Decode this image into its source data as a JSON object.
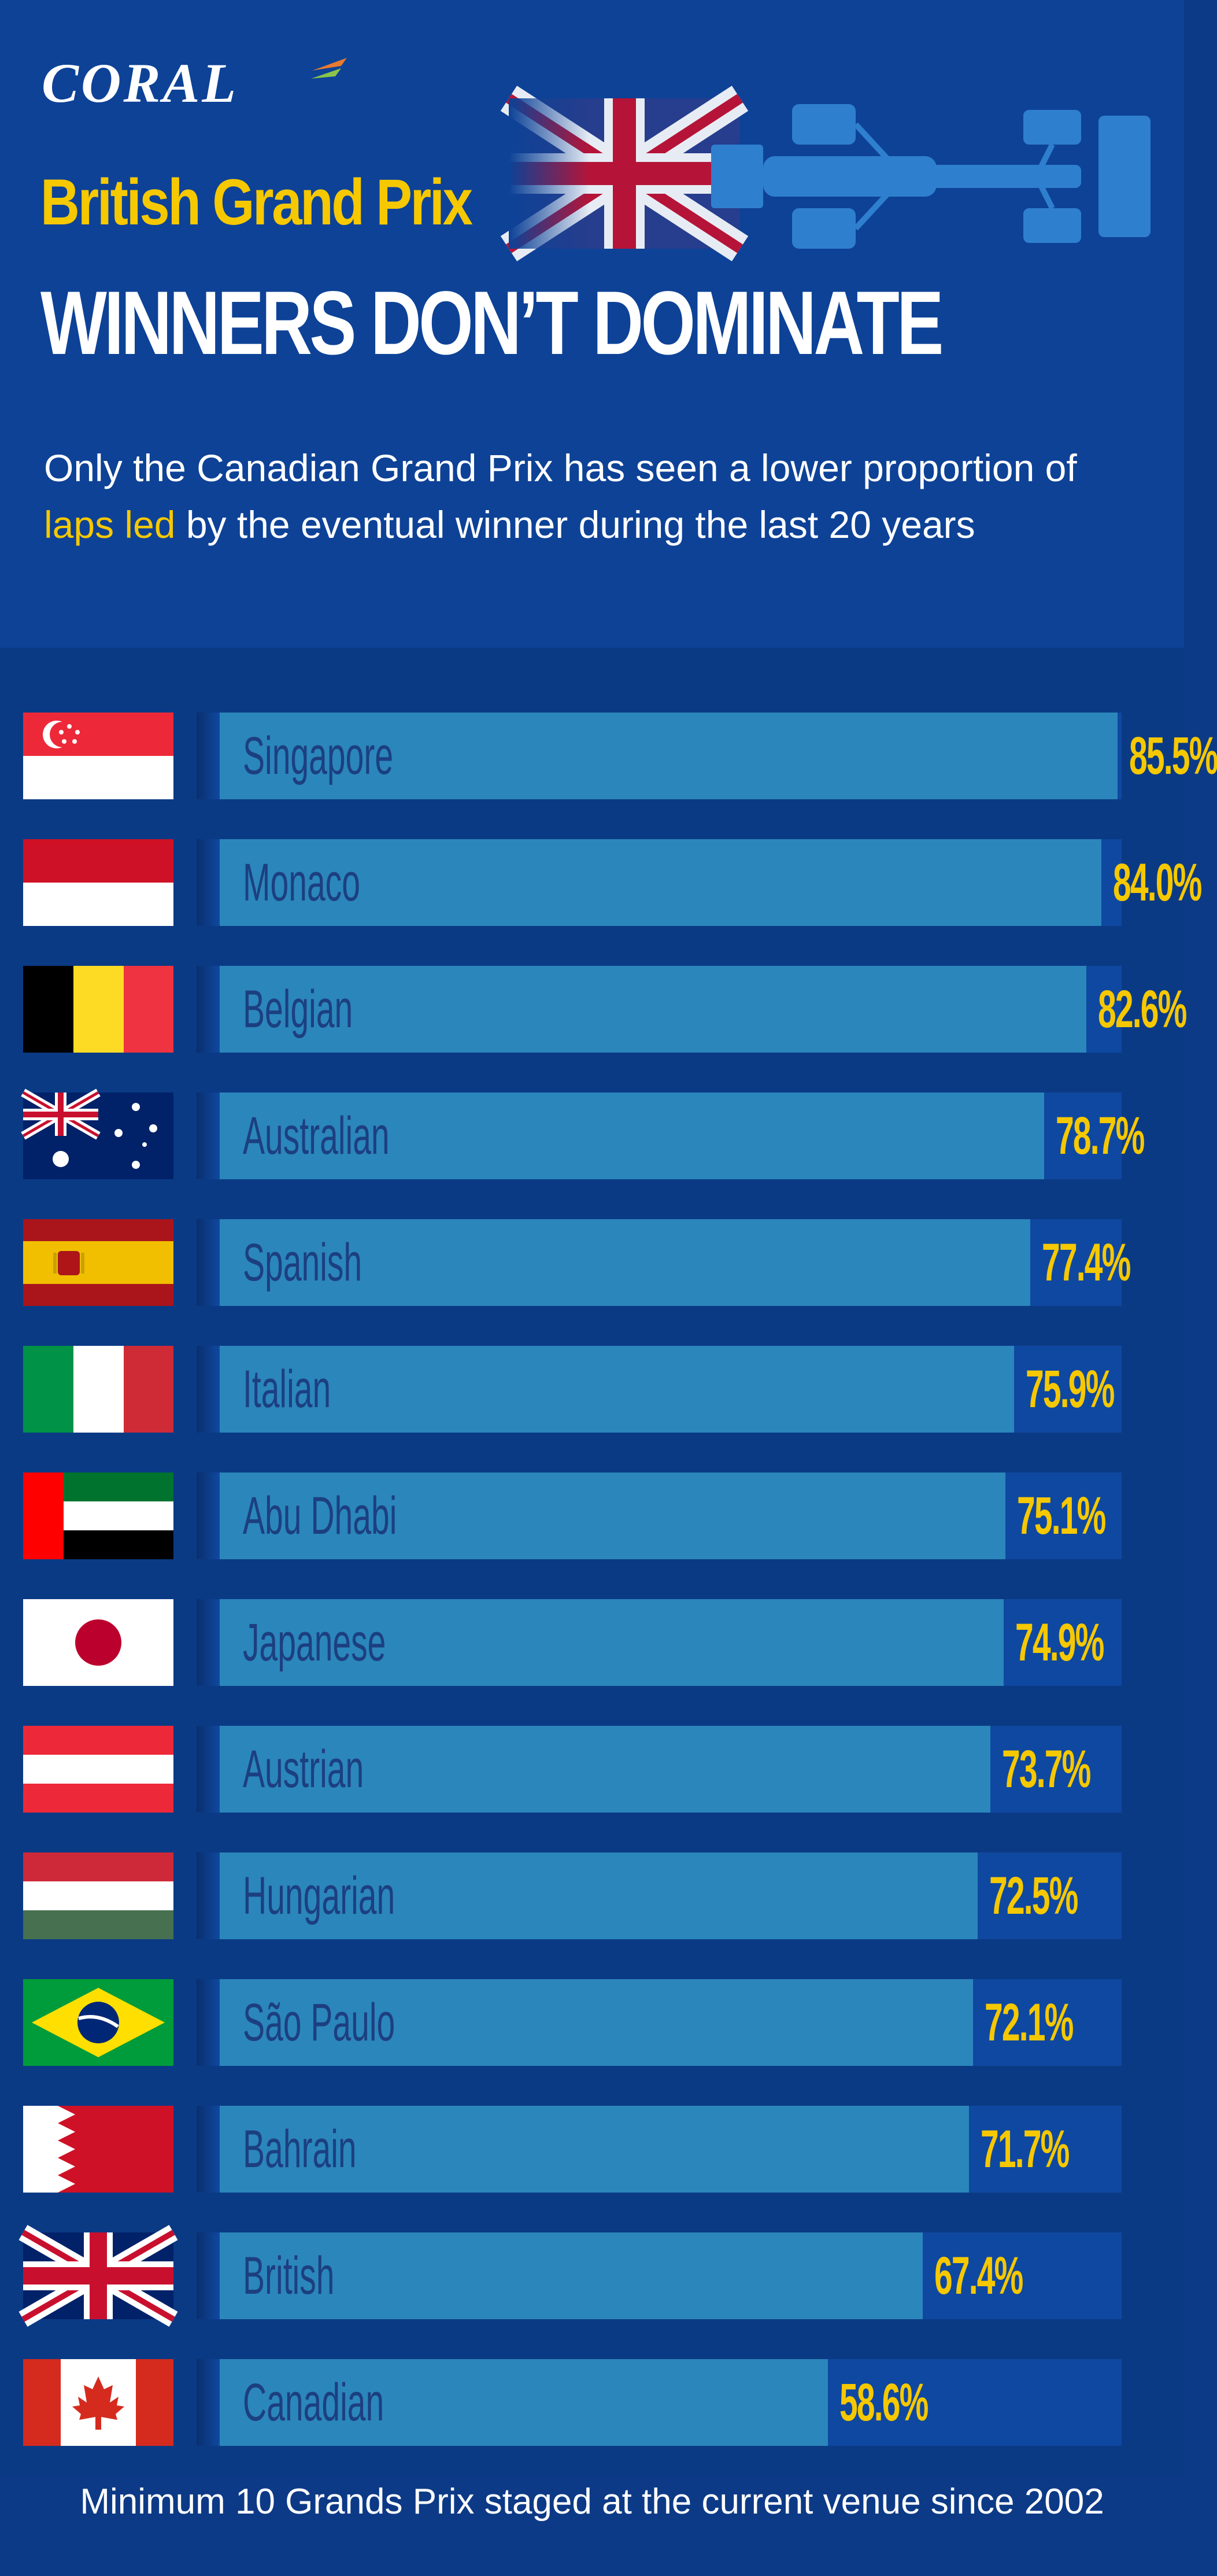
{
  "header": {
    "logo_text": "CORAL",
    "subtitle": "British Grand Prix",
    "title": "WINNERS DON’T DOMINATE",
    "intro_before": "Only the Canadian Grand Prix has seen a lower proportion of ",
    "intro_highlight": "laps led",
    "intro_after": " by the eventual winner during the last 20 years"
  },
  "colors": {
    "background": "#0b3a85",
    "header_background": "#0d4297",
    "bar": "#2b86bb",
    "track": "#0f48a0",
    "accent_yellow": "#f6c800",
    "label_dark": "#1c3f80"
  },
  "chart_data": {
    "type": "bar",
    "orientation": "horizontal",
    "categories": [
      "Singapore",
      "Monaco",
      "Belgian",
      "Australian",
      "Spanish",
      "Italian",
      "Abu Dhabi",
      "Japanese",
      "Austrian",
      "Hungarian",
      "São Paulo",
      "Bahrain",
      "British",
      "Canadian"
    ],
    "value_labels": [
      "85.5%",
      "84.0%",
      "82.6%",
      "78.7%",
      "77.4%",
      "75.9%",
      "75.1%",
      "74.9%",
      "73.7%",
      "72.5%",
      "72.1%",
      "71.7%",
      "67.4%",
      "58.6%"
    ],
    "values": [
      85.5,
      84.0,
      82.6,
      78.7,
      77.4,
      75.9,
      75.1,
      74.9,
      73.7,
      72.5,
      72.1,
      71.7,
      67.4,
      58.6
    ],
    "flags": [
      "singapore-flag",
      "monaco-flag",
      "belgium-flag",
      "australia-flag",
      "spain-flag",
      "italy-flag",
      "uae-flag",
      "japan-flag",
      "austria-flag",
      "hungary-flag",
      "brazil-flag",
      "bahrain-flag",
      "uk-flag",
      "canada-flag"
    ],
    "unit": "%",
    "xlim": [
      0,
      100
    ],
    "grid": false,
    "legend": "none"
  },
  "footnote": "Minimum 10 Grands Prix staged at the current venue since 2002"
}
